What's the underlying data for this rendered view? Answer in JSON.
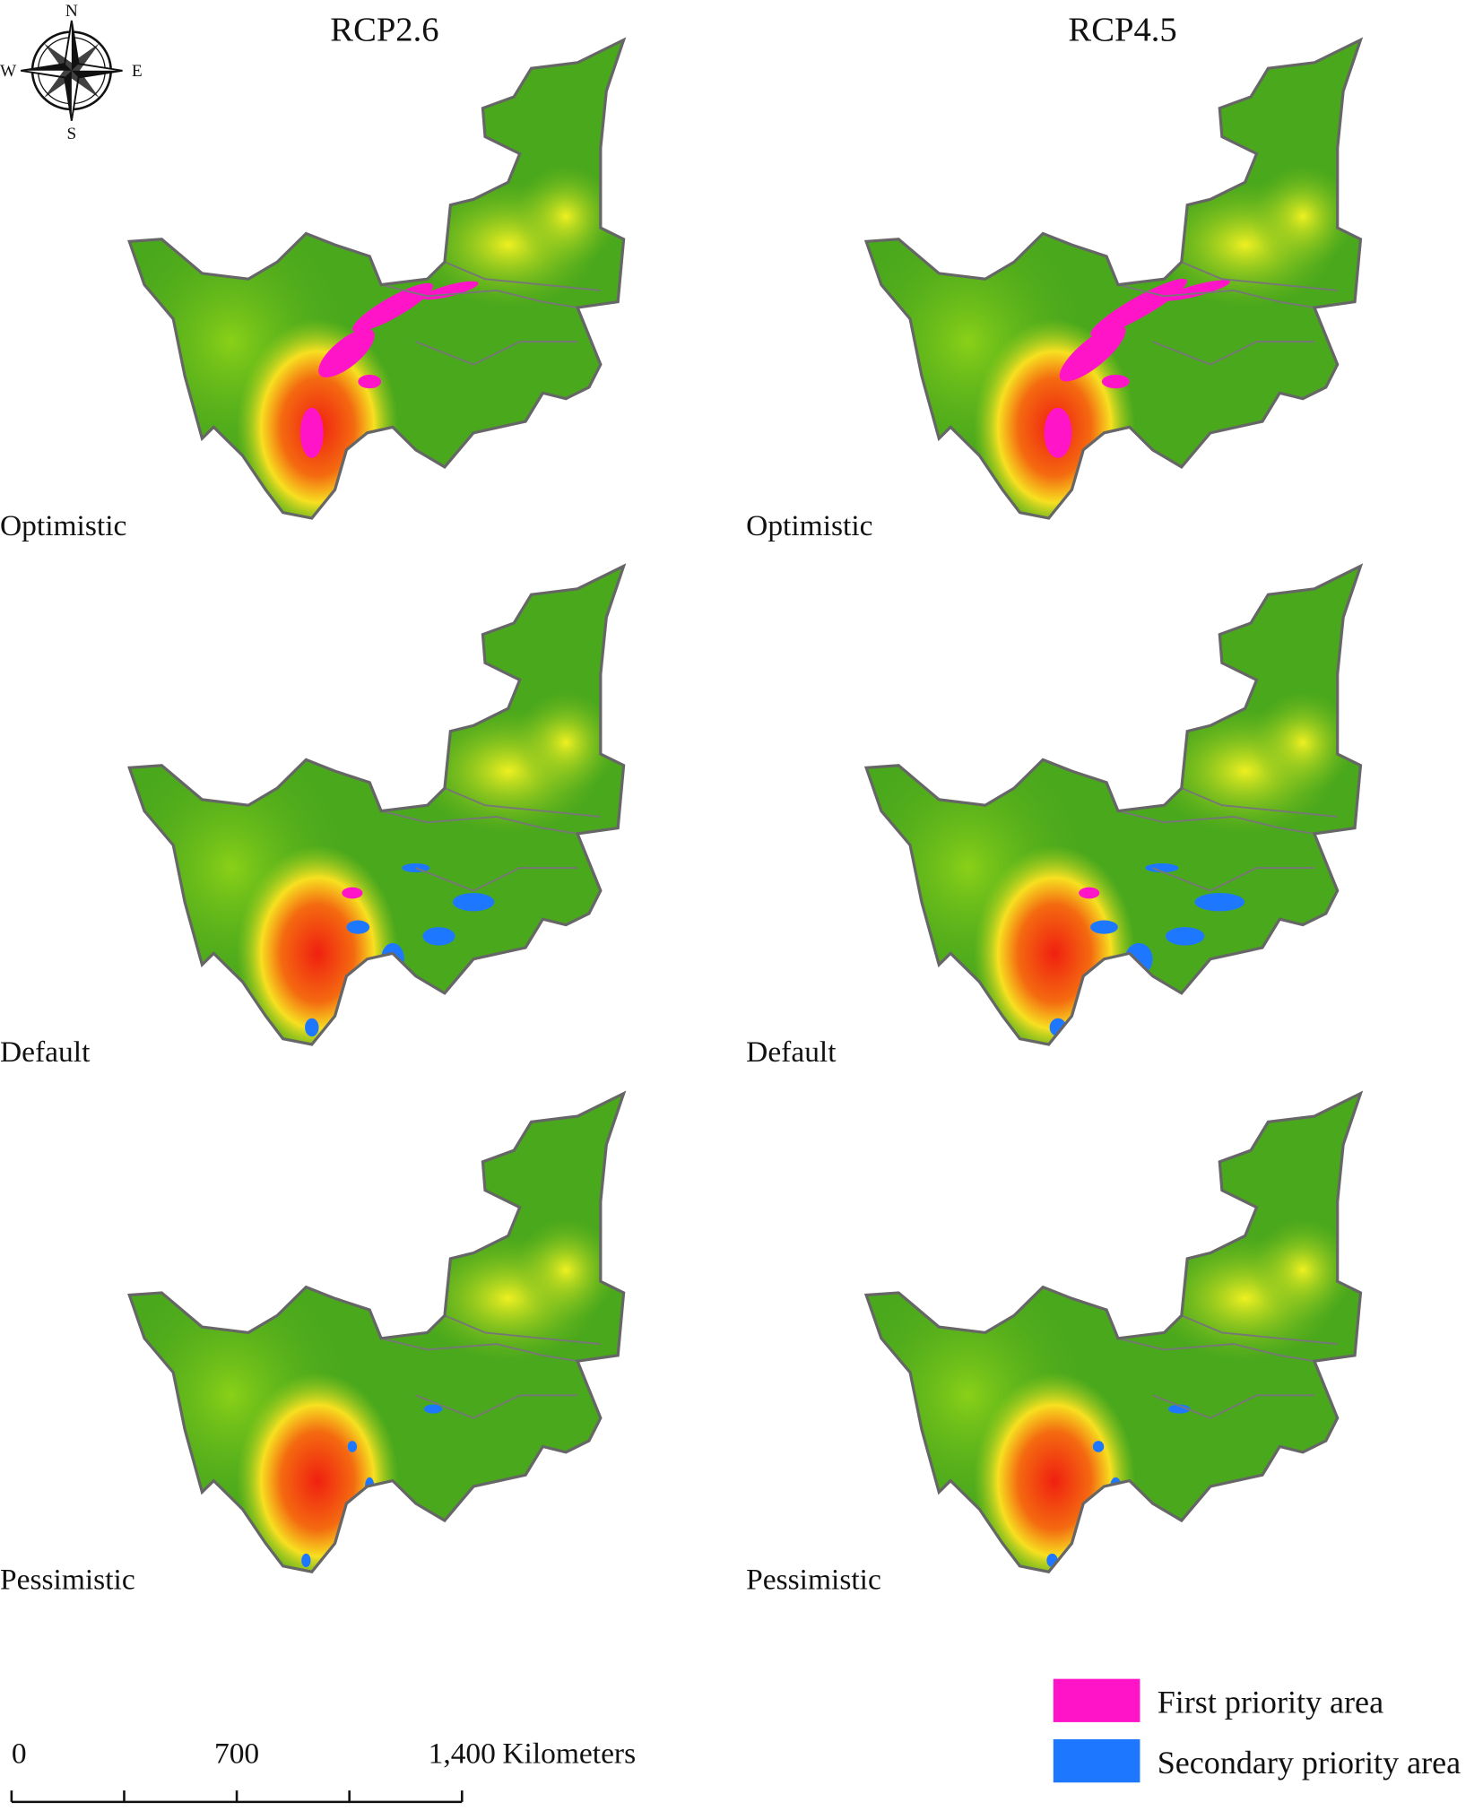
{
  "columns": [
    "RCP2.6",
    "RCP4.5"
  ],
  "rows": [
    "Optimistic",
    "Default",
    "Pessimistic"
  ],
  "compass": {
    "north": "N",
    "south": "S",
    "east": "E",
    "west": "W"
  },
  "scale_bar": {
    "ticks": [
      {
        "value": 0,
        "label": "0"
      },
      {
        "value": 700,
        "label": "700"
      },
      {
        "value": 1400,
        "label": "1,400"
      }
    ],
    "unit": "Kilometers"
  },
  "legend": [
    {
      "label": "First priority area",
      "color": "#ff14c8"
    },
    {
      "label": "Secondary priority area",
      "color": "#1e78ff"
    }
  ]
}
